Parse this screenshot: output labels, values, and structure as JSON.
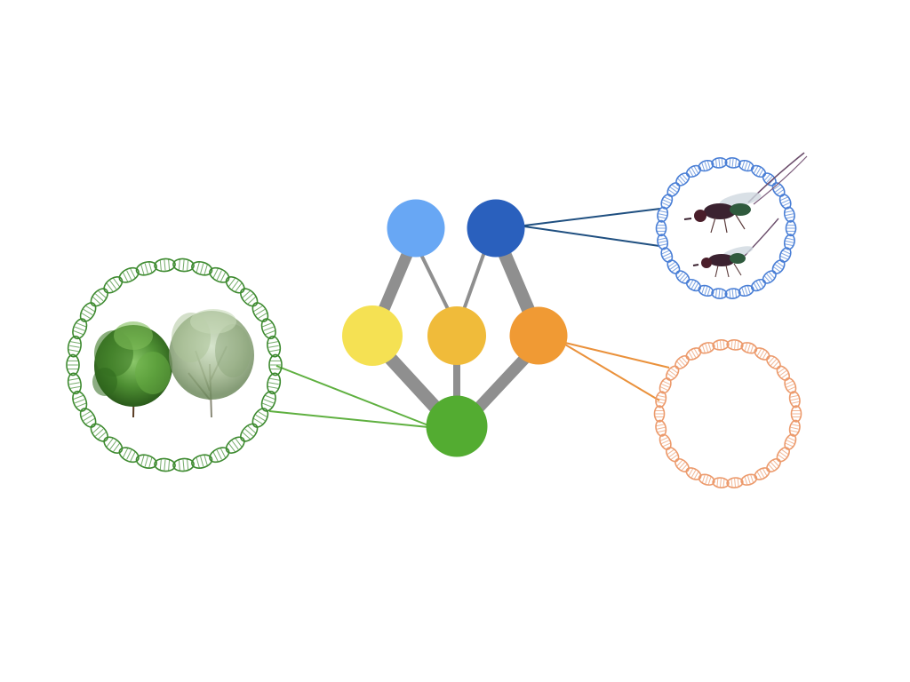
{
  "diagram": {
    "type": "food-web-network",
    "colors": {
      "background": "#ffffff",
      "edge": "#8f8f8f",
      "node_light_blue": "#68a7f4",
      "node_dark_blue": "#2a60bd",
      "node_yellow": "#f5e153",
      "node_gold": "#f0bb3a",
      "node_orange": "#f09a34",
      "node_green": "#53ac31",
      "plant_ring": "#3d8a2f",
      "plant_link": "#5fb040",
      "wasp_ring": "#4a7fd6",
      "wasp_link": "#1f4f80",
      "microbe_ring": "#ec9a6c",
      "microbe_link": "#ea913b"
    },
    "nodes": [
      {
        "id": "n1",
        "role": "upper-left consumer",
        "color_key": "node_light_blue"
      },
      {
        "id": "n2",
        "role": "upper-right consumer",
        "color_key": "node_dark_blue"
      },
      {
        "id": "n3",
        "role": "middle-left",
        "color_key": "node_yellow"
      },
      {
        "id": "n4",
        "role": "middle-center",
        "color_key": "node_gold"
      },
      {
        "id": "n5",
        "role": "middle-right",
        "color_key": "node_orange"
      },
      {
        "id": "n6",
        "role": "basal",
        "color_key": "node_green"
      }
    ],
    "edges": [
      {
        "from": "n1",
        "to": "n3",
        "weight": "heavy"
      },
      {
        "from": "n1",
        "to": "n4",
        "weight": "light"
      },
      {
        "from": "n2",
        "to": "n4",
        "weight": "light"
      },
      {
        "from": "n2",
        "to": "n5",
        "weight": "heavy"
      },
      {
        "from": "n3",
        "to": "n6",
        "weight": "heavy"
      },
      {
        "from": "n4",
        "to": "n6",
        "weight": "medium"
      },
      {
        "from": "n5",
        "to": "n6",
        "weight": "heavy"
      }
    ],
    "genome_rings": [
      {
        "name": "plant-genome-ring",
        "content": "shrubs-icon",
        "ring_key": "plant_ring",
        "link_key": "plant_link",
        "attached_to": "n6"
      },
      {
        "name": "wasp-genome-ring",
        "content": "wasps-icon",
        "ring_key": "wasp_ring",
        "link_key": "wasp_link",
        "attached_to": "n2"
      },
      {
        "name": "microbe-genome-ring",
        "content": "empty",
        "ring_key": "microbe_ring",
        "link_key": "microbe_link",
        "attached_to": "n5"
      }
    ]
  }
}
